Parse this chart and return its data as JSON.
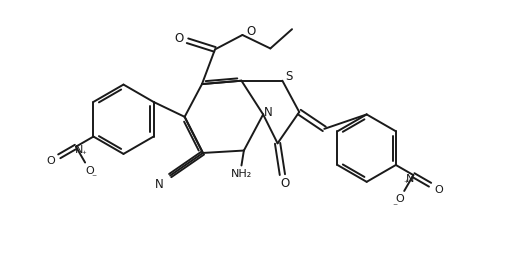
{
  "background_color": "#ffffff",
  "line_color": "#1a1a1a",
  "lw": 1.4,
  "figsize": [
    5.07,
    2.77
  ],
  "dpi": 100,
  "xlim": [
    0,
    10.5
  ],
  "ylim": [
    0,
    5.7
  ]
}
